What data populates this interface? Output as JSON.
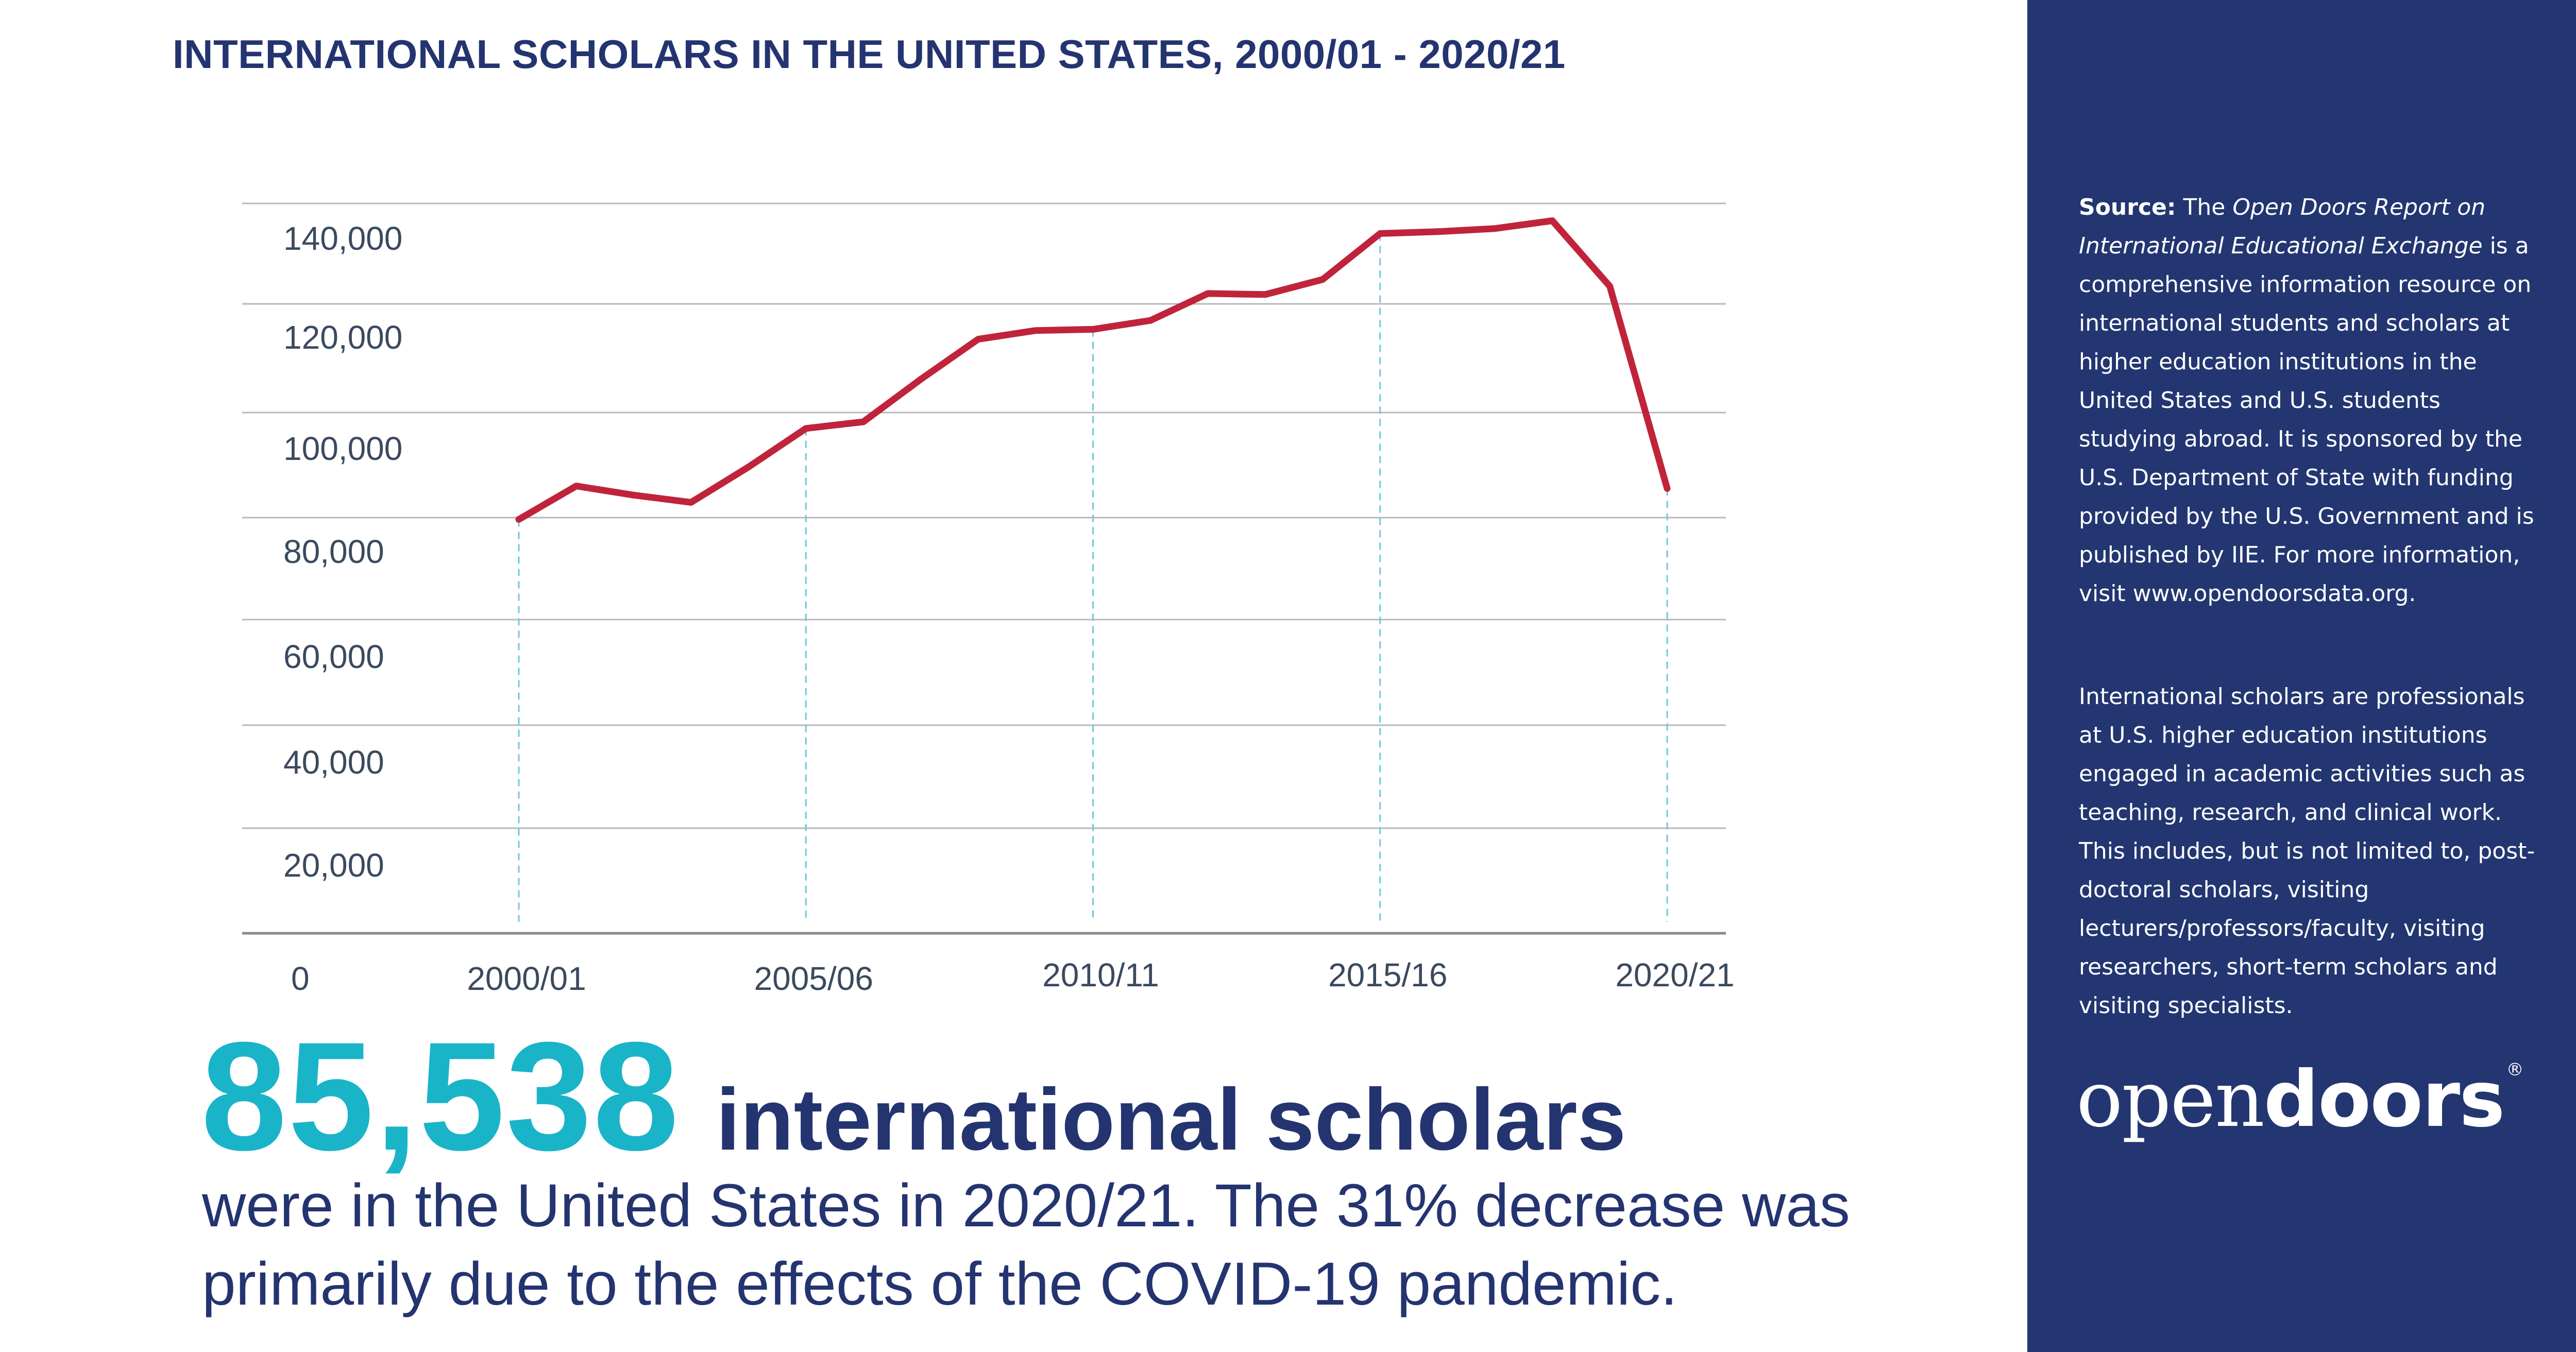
{
  "chart_data": {
    "type": "line",
    "title": "INTERNATIONAL SCHOLARS IN THE UNITED STATES, 2000/01 - 2020/21",
    "x": [
      "2000/01",
      "2001/02",
      "2002/03",
      "2003/04",
      "2004/05",
      "2005/06",
      "2006/07",
      "2007/08",
      "2008/09",
      "2009/10",
      "2010/11",
      "2011/12",
      "2012/13",
      "2013/14",
      "2014/15",
      "2015/16",
      "2016/17",
      "2017/18",
      "2018/19",
      "2019/20",
      "2020/21"
    ],
    "x_tick_labels": [
      "2000/01",
      "2005/06",
      "2010/11",
      "2015/16",
      "2020/21"
    ],
    "series": [
      {
        "values": [
          79651,
          86015,
          84281,
          82905,
          89634,
          96981,
          98239,
          106123,
          113494,
          115098,
          115313,
          116951,
          122059,
          121863,
          124861,
          134014,
          134378,
          135009,
          136563,
          123508,
          85538
        ],
        "color": "#c0243a"
      }
    ],
    "y_tick_labels": [
      "0",
      "20,000",
      "40,000",
      "60,000",
      "80,000",
      "100,000",
      "120,000",
      "140,000"
    ],
    "ylim": [
      0,
      140000
    ],
    "grid": true,
    "legend": "none",
    "xlabel": "",
    "ylabel": ""
  },
  "headline": {
    "number": "85,538",
    "label": "international scholars",
    "sentence": "were in the United States in 2020/21. The 31% decrease was primarily due to the effects of the COVID-19 pandemic."
  },
  "sidebar": {
    "source_label": "Source:",
    "source_pre": "The",
    "source_title": "Open Doors Report on International Educational Exchange",
    "source_body": "is a comprehensive information resource on international students and scholars at higher education institutions in the United States and U.S. students studying abroad. It is sponsored by the U.S. Department of State with funding provided by the U.S. Government and is published by IIE. For more information, visit www.opendoorsdata.org.",
    "definition": "International scholars are professionals at U.S. higher education institutions engaged in academic activities such as teaching, research, and clinical work. This includes, but is not limited to, post-doctoral scholars, visiting lecturers/professors/faculty, visiting researchers, short-term scholars and visiting specialists.",
    "logo_open": "open",
    "logo_doors": "doors",
    "logo_reg": "®"
  },
  "colors": {
    "navy": "#243470",
    "sidebar_bg": "#233671",
    "teal": "#1ab4c8",
    "line": "#c0243a",
    "grid": "#b8b8b8",
    "guide": "#6fc9dc"
  }
}
